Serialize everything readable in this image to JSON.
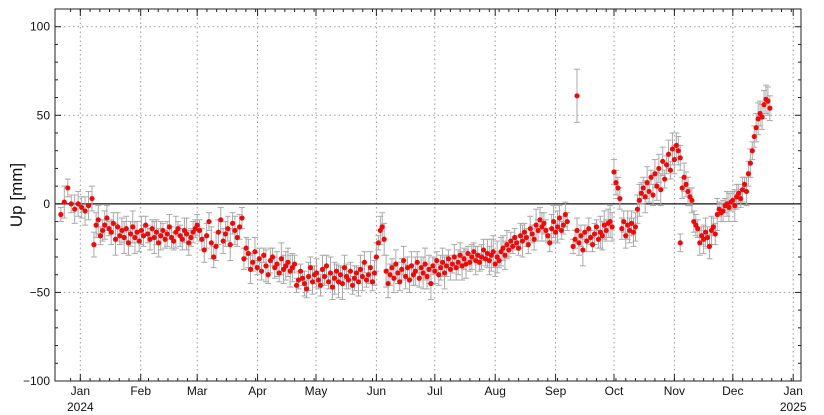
{
  "chart_data": {
    "type": "scatter",
    "title": "",
    "ylabel": "Up [mm]",
    "xlabel": "",
    "ylim": [
      -100,
      110
    ],
    "xlim": [
      "2023-12-19",
      "2025-01-05"
    ],
    "yticks": [
      100,
      50,
      0,
      -50,
      -100
    ],
    "ytick_labels": [
      "100",
      "50",
      "0",
      "−50",
      "−100"
    ],
    "xticks": [
      "2024-01-01",
      "2024-02-01",
      "2024-03-01",
      "2024-04-01",
      "2024-05-01",
      "2024-06-01",
      "2024-07-01",
      "2024-08-01",
      "2024-09-01",
      "2024-10-01",
      "2024-11-01",
      "2024-12-01",
      "2025-01-01"
    ],
    "xtick_labels": [
      "Jan",
      "Feb",
      "Mar",
      "Apr",
      "May",
      "Jun",
      "Jul",
      "Aug",
      "Sep",
      "Oct",
      "Nov",
      "Dec",
      "Jan"
    ],
    "year_labels": [
      {
        "date": "2024-01-01",
        "label": "2024"
      },
      {
        "date": "2025-01-01",
        "label": "2025"
      }
    ],
    "grid": true,
    "zero_line": true,
    "marker_color": "#ee0a0a",
    "errorbar_color": "#a9a9a9",
    "outliers": [
      {
        "x": "2024-09-12",
        "y": 61,
        "err": 15
      },
      {
        "x": "2024-11-04",
        "y": -22,
        "err": 5
      }
    ],
    "segments": [
      {
        "start": "2023-12-22",
        "end": "2024-01-07",
        "values": [
          -6,
          1,
          9,
          0,
          -3,
          0,
          -2,
          -4,
          -1,
          3
        ]
      },
      {
        "start": "2024-01-08",
        "end": "2024-02-29",
        "values": [
          -23,
          -12,
          -9,
          -18,
          -15,
          -12,
          -8,
          -14,
          -16,
          -11,
          -20,
          -13,
          -18,
          -15,
          -19,
          -14,
          -22,
          -17,
          -13,
          -19,
          -16,
          -21,
          -15,
          -18,
          -12,
          -17,
          -20,
          -14,
          -19,
          -16,
          -22,
          -18,
          -15,
          -20,
          -17,
          -13,
          -19,
          -21,
          -16,
          -14,
          -18,
          -20,
          -15,
          -17,
          -22,
          -19,
          -16,
          -14
        ]
      },
      {
        "start": "2024-03-01",
        "end": "2024-03-24",
        "values": [
          -12,
          -15,
          -20,
          -26,
          -18,
          -10,
          -22,
          -30,
          -24,
          -16,
          -9,
          -21,
          -17,
          -14,
          -23,
          -11,
          -15,
          -19,
          -13,
          -8
        ]
      },
      {
        "start": "2024-03-25",
        "end": "2024-04-20",
        "values": [
          -31,
          -25,
          -28,
          -37,
          -33,
          -27,
          -36,
          -31,
          -38,
          -29,
          -35,
          -40,
          -32,
          -30,
          -36,
          -34,
          -39,
          -31,
          -37,
          -35,
          -33,
          -38,
          -36,
          -34
        ]
      },
      {
        "start": "2024-04-21",
        "end": "2024-05-31",
        "values": [
          -46,
          -43,
          -38,
          -42,
          -45,
          -48,
          -41,
          -36,
          -44,
          -40,
          -39,
          -43,
          -46,
          -37,
          -41,
          -35,
          -44,
          -39,
          -47,
          -42,
          -38,
          -44,
          -40,
          -45,
          -36,
          -41,
          -43,
          -38,
          -46,
          -42,
          -39,
          -44,
          -37,
          -41,
          -33,
          -43,
          -40,
          -36,
          -44,
          -39
        ]
      },
      {
        "start": "2024-06-01",
        "end": "2024-06-05",
        "values": [
          -30,
          -22,
          -15,
          -13,
          -20
        ]
      },
      {
        "start": "2024-06-06",
        "end": "2024-07-31",
        "values": [
          -38,
          -45,
          -40,
          -36,
          -42,
          -34,
          -39,
          -44,
          -37,
          -32,
          -41,
          -36,
          -43,
          -35,
          -40,
          -38,
          -33,
          -42,
          -36,
          -39,
          -34,
          -41,
          -37,
          -45,
          -35,
          -38,
          -32,
          -40,
          -36,
          -33,
          -39,
          -35,
          -31,
          -37,
          -34,
          -30,
          -36,
          -33,
          -29,
          -35,
          -31,
          -34,
          -28,
          -33,
          -30,
          -27,
          -32,
          -29,
          -33,
          -30,
          -26,
          -31,
          -28,
          -32,
          -29,
          -27
        ]
      },
      {
        "start": "2024-08-01",
        "end": "2024-09-07",
        "values": [
          -34,
          -30,
          -32,
          -27,
          -25,
          -29,
          -23,
          -26,
          -21,
          -24,
          -19,
          -22,
          -25,
          -18,
          -21,
          -16,
          -19,
          -23,
          -14,
          -17,
          -20,
          -12,
          -15,
          -9,
          -13,
          -11,
          -15,
          -18,
          -22,
          -14,
          -10,
          -16,
          -13,
          -8,
          -15,
          -12,
          -6,
          -10
        ]
      },
      {
        "start": "2024-09-10",
        "end": "2024-09-30",
        "values": [
          -24,
          -20,
          -15,
          -22,
          -18,
          -26,
          -16,
          -21,
          -14,
          -19,
          -23,
          -17,
          -13,
          -20,
          -16,
          -18,
          -12,
          -15,
          -11,
          -10,
          -13
        ]
      },
      {
        "start": "2024-10-01",
        "end": "2024-10-04",
        "values": [
          18,
          12,
          9,
          3
        ]
      },
      {
        "start": "2024-10-05",
        "end": "2024-10-12",
        "values": [
          -14,
          -10,
          -18,
          -12,
          -15,
          -11,
          -16,
          -13
        ]
      },
      {
        "start": "2024-10-13",
        "end": "2024-11-10",
        "values": [
          -3,
          2,
          6,
          9,
          4,
          12,
          7,
          15,
          5,
          17,
          10,
          20,
          8,
          24,
          14,
          22,
          28,
          19,
          31,
          25,
          33,
          30,
          26,
          9,
          15,
          11,
          7,
          4,
          2
        ]
      },
      {
        "start": "2024-11-11",
        "end": "2024-11-22",
        "values": [
          -10,
          -12,
          -14,
          -22,
          -18,
          -20,
          -16,
          -19,
          -24,
          -15,
          -13,
          -17
        ]
      },
      {
        "start": "2024-11-23",
        "end": "2024-12-08",
        "values": [
          -6,
          -3,
          -5,
          -4,
          -1,
          0,
          -2,
          1,
          2,
          -1,
          4,
          6,
          3,
          8,
          11,
          7
        ]
      },
      {
        "start": "2024-12-09",
        "end": "2024-12-20",
        "values": [
          17,
          23,
          30,
          38,
          43,
          48,
          51,
          49,
          56,
          59,
          58,
          54
        ]
      }
    ]
  }
}
